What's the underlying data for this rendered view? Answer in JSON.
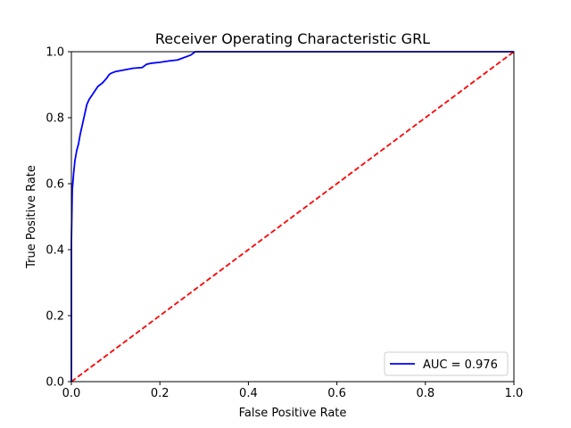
{
  "chart_data": {
    "type": "line",
    "title": "Receiver Operating Characteristic GRL",
    "xlabel": "False Positive Rate",
    "ylabel": "True Positive Rate",
    "xlim": [
      0,
      1
    ],
    "ylim": [
      0,
      1
    ],
    "xticks": [
      "0.0",
      "0.2",
      "0.4",
      "0.6",
      "0.8",
      "1.0"
    ],
    "yticks": [
      "0.0",
      "0.2",
      "0.4",
      "0.6",
      "0.8",
      "1.0"
    ],
    "grid": false,
    "legend_position": "lower-right",
    "series": [
      {
        "name": "AUC = 0.976",
        "color": "#0000ff",
        "style": "solid",
        "x": [
          0.0,
          0.0,
          0.002,
          0.005,
          0.008,
          0.012,
          0.016,
          0.02,
          0.025,
          0.03,
          0.035,
          0.04,
          0.045,
          0.05,
          0.06,
          0.07,
          0.08,
          0.085,
          0.09,
          0.1,
          0.12,
          0.14,
          0.16,
          0.17,
          0.18,
          0.2,
          0.22,
          0.24,
          0.25,
          0.26,
          0.27,
          0.28,
          0.4,
          0.6,
          0.8,
          1.0
        ],
        "y": [
          0.0,
          0.42,
          0.58,
          0.63,
          0.67,
          0.7,
          0.72,
          0.75,
          0.78,
          0.81,
          0.84,
          0.855,
          0.865,
          0.875,
          0.895,
          0.905,
          0.92,
          0.93,
          0.935,
          0.94,
          0.945,
          0.95,
          0.952,
          0.962,
          0.965,
          0.968,
          0.972,
          0.975,
          0.98,
          0.985,
          0.99,
          1.0,
          1.0,
          1.0,
          1.0,
          1.0
        ]
      },
      {
        "name": "",
        "color": "#ff0000",
        "style": "dashed",
        "x": [
          0,
          1
        ],
        "y": [
          0,
          1
        ]
      }
    ]
  }
}
